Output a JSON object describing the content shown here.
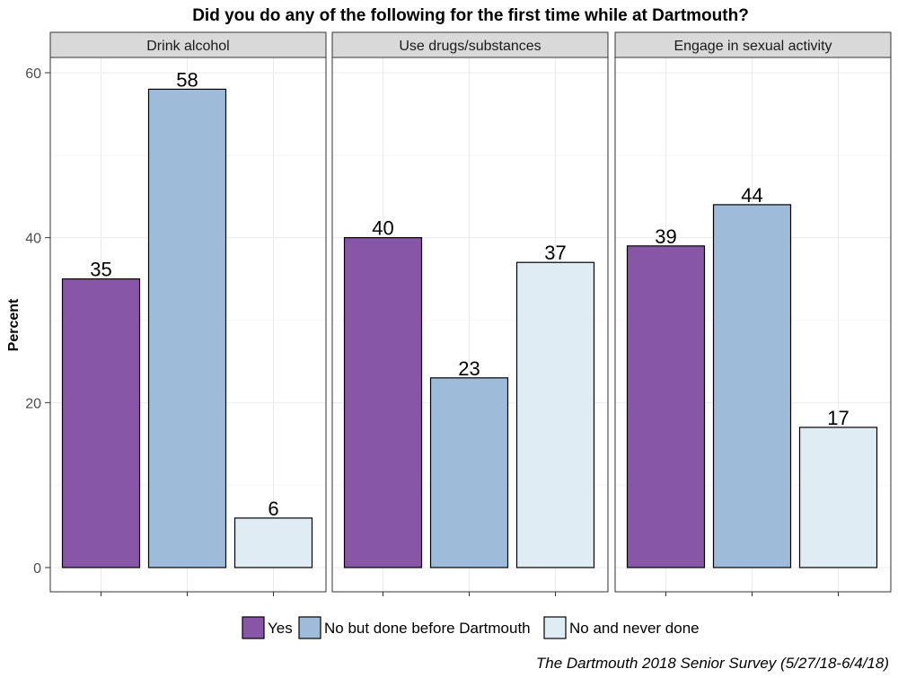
{
  "chart_data": {
    "type": "bar",
    "title": "Did you do any of the following for the first time while at Dartmouth?",
    "ylabel": "Percent",
    "xlabel": "",
    "ylim": [
      0,
      60
    ],
    "yticks": [
      0,
      20,
      40,
      60
    ],
    "grid": true,
    "legend_position": "bottom",
    "facets": [
      "Drink alcohol",
      "Use drugs/substances",
      "Engage in sexual activity"
    ],
    "series": [
      {
        "name": "Yes",
        "color": "#8856a7",
        "values": [
          35,
          40,
          39
        ]
      },
      {
        "name": "No but done before Dartmouth",
        "color": "#9ebcda",
        "values": [
          58,
          23,
          44
        ]
      },
      {
        "name": "No and never done",
        "color": "#e0ecf4",
        "values": [
          6,
          37,
          17
        ]
      }
    ],
    "caption": "The Dartmouth 2018 Senior Survey (5/27/18-6/4/18)"
  }
}
